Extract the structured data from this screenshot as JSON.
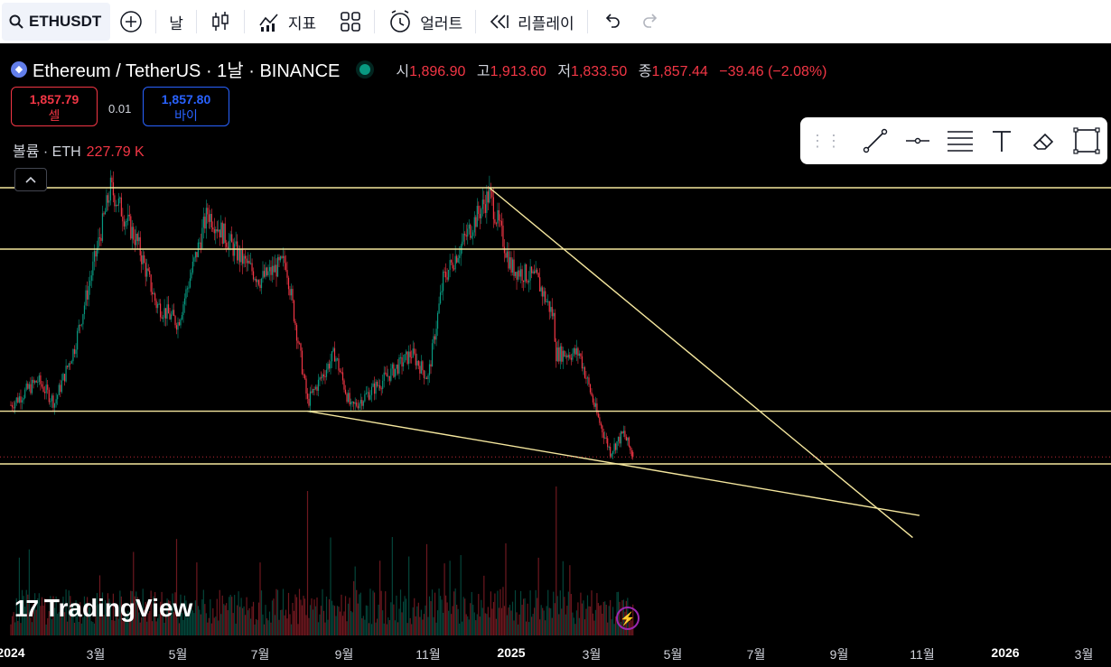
{
  "toolbar": {
    "symbol": "ETHUSDT",
    "interval": "날",
    "indicators_label": "지표",
    "alert_label": "얼러트",
    "replay_label": "리플레이"
  },
  "legend": {
    "title": "Ethereum / TetherUS · 1날 · BINANCE",
    "open_label": "시",
    "open": "1,896.90",
    "high_label": "고",
    "high": "1,913.60",
    "low_label": "저",
    "low": "1,833.50",
    "close_label": "종",
    "close": "1,857.44",
    "change": "−39.46 (−2.08%)"
  },
  "trade": {
    "sell_price": "1,857.79",
    "sell_label": "셀",
    "spread": "0.01",
    "buy_price": "1,857.80",
    "buy_label": "바이"
  },
  "volume": {
    "label": "볼륨 · ETH",
    "value": "227.79 K"
  },
  "branding": {
    "logo_text": "TradingView"
  },
  "colors": {
    "up": "#089981",
    "down": "#f23645",
    "level": "#f5e79e",
    "buy": "#2962ff"
  },
  "time_axis": [
    "2024",
    "3월",
    "5월",
    "7월",
    "9월",
    "11월",
    "2025",
    "3월",
    "5월",
    "7월",
    "9월",
    "11월",
    "2026",
    "3월"
  ],
  "chart_data": {
    "type": "candlestick",
    "symbol": "ETHUSDT",
    "interval": "1D",
    "last_close": 1857.44,
    "approx_path_close": [
      [
        "2024-01-01",
        2280
      ],
      [
        "2024-01-20",
        2480
      ],
      [
        "2024-02-01",
        2300
      ],
      [
        "2024-02-15",
        2750
      ],
      [
        "2024-03-12",
        4050
      ],
      [
        "2024-04-01",
        3600
      ],
      [
        "2024-04-15",
        3100
      ],
      [
        "2024-05-01",
        2950
      ],
      [
        "2024-05-23",
        3850
      ],
      [
        "2024-06-15",
        3500
      ],
      [
        "2024-07-01",
        3300
      ],
      [
        "2024-07-20",
        3450
      ],
      [
        "2024-08-05",
        2300
      ],
      [
        "2024-08-25",
        2700
      ],
      [
        "2024-09-06",
        2250
      ],
      [
        "2024-10-01",
        2500
      ],
      [
        "2024-10-20",
        2700
      ],
      [
        "2024-11-01",
        2500
      ],
      [
        "2024-11-12",
        3300
      ],
      [
        "2024-12-01",
        3700
      ],
      [
        "2024-12-16",
        4000
      ],
      [
        "2025-01-01",
        3400
      ],
      [
        "2025-01-20",
        3300
      ],
      [
        "2025-02-01",
        3000
      ],
      [
        "2025-02-03",
        2700
      ],
      [
        "2025-02-20",
        2700
      ],
      [
        "2025-03-05",
        2200
      ],
      [
        "2025-03-15",
        1900
      ],
      [
        "2025-03-25",
        2050
      ],
      [
        "2025-04-01",
        1857
      ]
    ],
    "horizontal_levels": [
      4050,
      3550,
      2230,
      1800
    ],
    "trendlines": [
      {
        "from": [
          "2024-12-16",
          4050
        ],
        "to": [
          "2025-10-25",
          1200
        ]
      },
      {
        "from": [
          "2024-08-05",
          2230
        ],
        "to": [
          "2025-10-30",
          1380
        ]
      }
    ]
  }
}
